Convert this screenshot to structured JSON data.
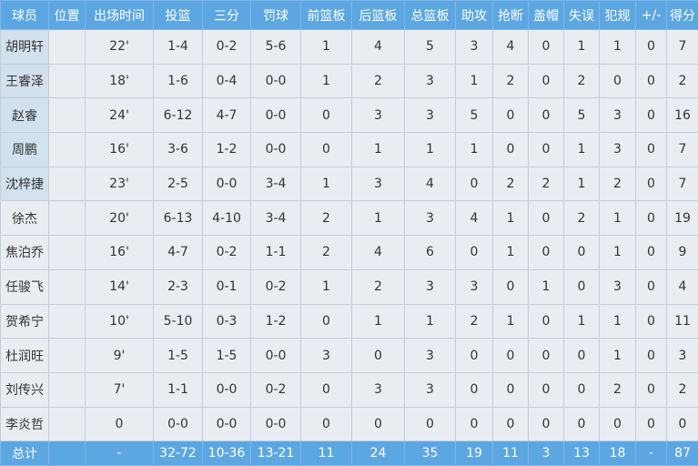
{
  "colors": {
    "header": "#5ca6e2",
    "starter_name_bg": "#d3e1ee",
    "cell_bg": "#e9edf1"
  },
  "headers": [
    "球员",
    "位置",
    "出场时间",
    "投篮",
    "三分",
    "罚球",
    "前篮板",
    "后篮板",
    "总篮板",
    "助攻",
    "抢断",
    "盖帽",
    "失误",
    "犯规",
    "+/-",
    "得分"
  ],
  "rows": [
    {
      "starter": true,
      "cells": [
        "胡明轩",
        "",
        "22'",
        "1-4",
        "0-2",
        "5-6",
        "1",
        "4",
        "5",
        "3",
        "4",
        "0",
        "1",
        "1",
        "0",
        "7"
      ]
    },
    {
      "starter": true,
      "cells": [
        "王睿泽",
        "",
        "18'",
        "1-6",
        "0-4",
        "0-0",
        "1",
        "2",
        "3",
        "1",
        "2",
        "0",
        "2",
        "0",
        "0",
        "2"
      ]
    },
    {
      "starter": true,
      "cells": [
        "赵睿",
        "",
        "24'",
        "6-12",
        "4-7",
        "0-0",
        "0",
        "3",
        "3",
        "5",
        "0",
        "0",
        "5",
        "3",
        "0",
        "16"
      ]
    },
    {
      "starter": true,
      "cells": [
        "周鹏",
        "",
        "16'",
        "3-6",
        "1-2",
        "0-0",
        "0",
        "1",
        "1",
        "1",
        "0",
        "0",
        "1",
        "3",
        "0",
        "7"
      ]
    },
    {
      "starter": true,
      "cells": [
        "沈梓捷",
        "",
        "23'",
        "2-5",
        "0-0",
        "3-4",
        "1",
        "3",
        "4",
        "0",
        "2",
        "2",
        "1",
        "2",
        "0",
        "7"
      ]
    },
    {
      "starter": false,
      "cells": [
        "徐杰",
        "",
        "20'",
        "6-13",
        "4-10",
        "3-4",
        "2",
        "1",
        "3",
        "4",
        "1",
        "0",
        "2",
        "1",
        "0",
        "19"
      ]
    },
    {
      "starter": false,
      "cells": [
        "焦泊乔",
        "",
        "16'",
        "4-7",
        "0-2",
        "1-1",
        "2",
        "4",
        "6",
        "0",
        "1",
        "0",
        "0",
        "1",
        "0",
        "9"
      ]
    },
    {
      "starter": false,
      "cells": [
        "任骏飞",
        "",
        "14'",
        "2-3",
        "0-1",
        "0-2",
        "1",
        "2",
        "3",
        "3",
        "0",
        "1",
        "0",
        "3",
        "0",
        "4"
      ]
    },
    {
      "starter": false,
      "cells": [
        "贺希宁",
        "",
        "10'",
        "5-10",
        "0-3",
        "1-2",
        "0",
        "1",
        "1",
        "2",
        "1",
        "0",
        "1",
        "1",
        "0",
        "11"
      ]
    },
    {
      "starter": false,
      "cells": [
        "杜润旺",
        "",
        "9'",
        "1-5",
        "1-5",
        "0-0",
        "3",
        "0",
        "3",
        "0",
        "0",
        "0",
        "0",
        "1",
        "0",
        "3"
      ]
    },
    {
      "starter": false,
      "cells": [
        "刘传兴",
        "",
        "7'",
        "1-1",
        "0-0",
        "0-2",
        "0",
        "3",
        "3",
        "0",
        "0",
        "0",
        "0",
        "2",
        "0",
        "2"
      ]
    },
    {
      "starter": false,
      "cells": [
        "李炎哲",
        "",
        "0",
        "0-0",
        "0-0",
        "0-0",
        "0",
        "0",
        "0",
        "0",
        "0",
        "0",
        "0",
        "0",
        "0",
        "0"
      ]
    }
  ],
  "total": [
    "总计",
    "",
    "-",
    "32-72",
    "10-36",
    "13-21",
    "11",
    "24",
    "35",
    "19",
    "11",
    "3",
    "13",
    "18",
    "-",
    "87"
  ]
}
